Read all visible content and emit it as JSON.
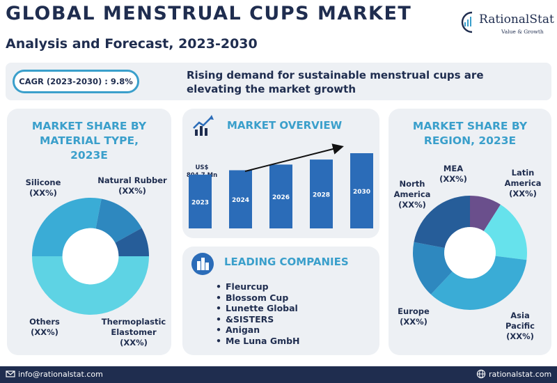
{
  "header": {
    "title": "GLOBAL MENSTRUAL CUPS MARKET",
    "subtitle": "Analysis and Forecast, 2023-2030"
  },
  "logo": {
    "name": "RationalStat",
    "tagline": "Value & Growth"
  },
  "banner": {
    "cagr": "CAGR (2023-2030) : 9.8%",
    "text": "Rising demand for sustainable menstrual cups are elevating the market growth"
  },
  "material": {
    "heading_lines": [
      "MARKET SHARE BY",
      "MATERIAL TYPE,",
      "2023E"
    ],
    "labels": {
      "silicone": [
        "Silicone",
        "(XX%)"
      ],
      "natural_rubber": [
        "Natural Rubber",
        "(XX%)"
      ],
      "others": [
        "Others",
        "(XX%)"
      ],
      "thermoplastic": [
        "Thermoplastic",
        "Elastomer",
        "(XX%)"
      ]
    }
  },
  "overview": {
    "heading": "MARKET OVERVIEW",
    "value_label": [
      "US$",
      "804.7 Mn"
    ]
  },
  "companies": {
    "heading": "LEADING COMPANIES",
    "items": [
      "Fleurcup",
      "Blossom Cup",
      "Lunette Global",
      "&SISTERS",
      "Anigan",
      "Me Luna GmbH"
    ]
  },
  "region": {
    "heading_lines": [
      "MARKET SHARE BY",
      "REGION, 2023E"
    ],
    "labels": {
      "mea": [
        "MEA",
        "(XX%)"
      ],
      "north_america": [
        "North",
        "America",
        "(XX%)"
      ],
      "latin_america": [
        "Latin",
        "America",
        "(XX%)"
      ],
      "europe": [
        "Europe",
        "(XX%)"
      ],
      "asia_pacific": [
        "Asia",
        "Pacific",
        "(XX%)"
      ]
    }
  },
  "footer": {
    "email": "info@rationalstat.com",
    "website": "rationalstat.com"
  },
  "colors": {
    "navy": "#1f2d4f",
    "accent": "#3a9fcb",
    "bar": "#2b6cb8",
    "card": "#edf0f4"
  },
  "chart_data": [
    {
      "type": "pie",
      "variant": "donut",
      "categories": [
        "Silicone",
        "Natural Rubber",
        "Thermoplastic Elastomer",
        "Others"
      ],
      "values": [
        50,
        28,
        14,
        8
      ],
      "colors": [
        "#5ed3e4",
        "#3aacd6",
        "#2e88bf",
        "#265d99"
      ],
      "title": "MARKET SHARE BY MATERIAL TYPE, 2023E"
    },
    {
      "type": "bar",
      "categories": [
        "2023",
        "2024",
        "2026",
        "2028",
        "2030"
      ],
      "values": [
        804.7,
        870,
        955,
        1030,
        1125
      ],
      "title": "MARKET OVERVIEW",
      "ylabel": "",
      "annotations": [
        "US$ 804.7 Mn"
      ],
      "trend_arrow": true,
      "grid": false
    },
    {
      "type": "pie",
      "variant": "donut",
      "categories": [
        "MEA",
        "Latin America",
        "Asia Pacific",
        "Europe",
        "North America"
      ],
      "values": [
        9,
        18,
        35,
        16,
        22
      ],
      "colors": [
        "#6a4f8c",
        "#66e2ec",
        "#3aacd6",
        "#2e88bf",
        "#265d99"
      ],
      "title": "MARKET SHARE BY REGION, 2023E"
    }
  ]
}
